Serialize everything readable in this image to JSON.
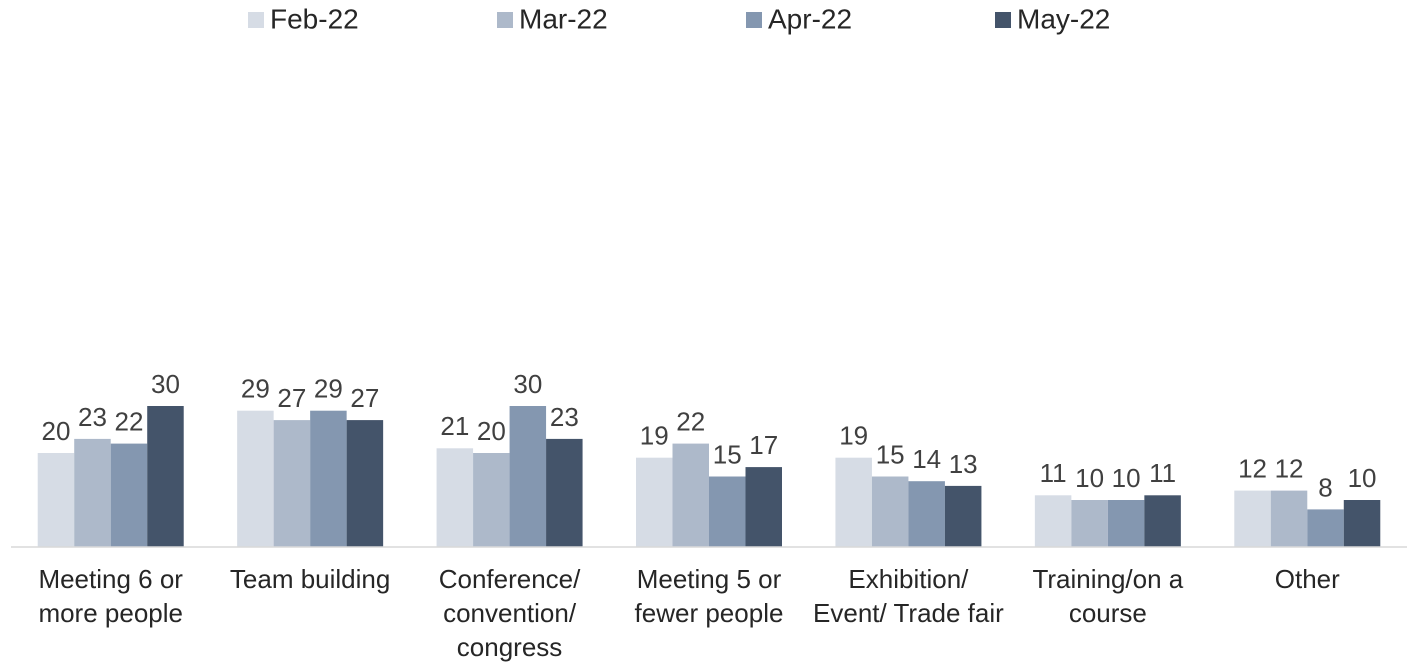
{
  "chart_data": {
    "type": "bar",
    "categories": [
      "Meeting 6 or more people",
      "Team building",
      "Conference/ convention/ congress",
      "Meeting 5 or fewer people",
      "Exhibition/ Event/ Trade fair",
      "Training/on a course",
      "Other"
    ],
    "series": [
      {
        "name": "Feb-22",
        "color": "#d6dce5",
        "values": [
          20,
          29,
          21,
          19,
          19,
          11,
          12
        ]
      },
      {
        "name": "Mar-22",
        "color": "#adb9ca",
        "values": [
          23,
          27,
          20,
          22,
          15,
          10,
          12
        ]
      },
      {
        "name": "Apr-22",
        "color": "#8497b0",
        "values": [
          22,
          29,
          30,
          15,
          14,
          10,
          8
        ]
      },
      {
        "name": "May-22",
        "color": "#44546a",
        "values": [
          30,
          27,
          23,
          17,
          13,
          11,
          10
        ]
      }
    ],
    "ylim": [
      0,
      100
    ],
    "legend": "top"
  }
}
